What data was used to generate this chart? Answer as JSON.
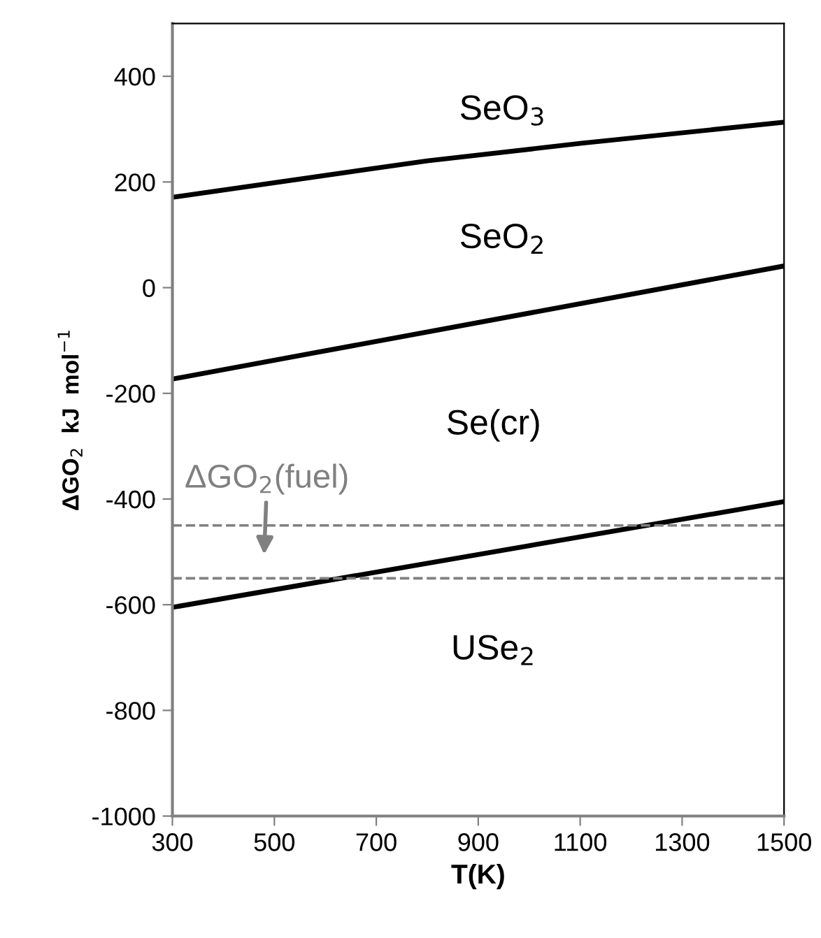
{
  "chart_data": {
    "type": "line",
    "xlabel": "T(K)",
    "ylabel": "ΔGO$_{2}$  kJ  mol$^{−1}$",
    "xlim": [
      300,
      1500
    ],
    "xticks": [
      300,
      500,
      700,
      900,
      1100,
      1300,
      1500
    ],
    "ylim": [
      -1000,
      500
    ],
    "yticks": [
      -1000,
      -800,
      -600,
      -400,
      -200,
      0,
      200,
      400
    ],
    "grid": false,
    "legend": false,
    "marker": "none",
    "line_style": "solid",
    "series": [
      {
        "color": "#000000",
        "x": [
          300,
          800,
          1100,
          1500
        ],
        "values": [
          171,
          240,
          273,
          313
        ]
      },
      {
        "color": "#000000",
        "x": [
          300,
          1500
        ],
        "values": [
          -173,
          41
        ]
      },
      {
        "color": "#000000",
        "x": [
          300,
          1500
        ],
        "values": [
          -605,
          -405
        ]
      }
    ],
    "ref_lines": [
      {
        "axis": "y",
        "value": -450,
        "color": "#808080",
        "line_style": "dashed"
      },
      {
        "axis": "y",
        "value": -550,
        "color": "#808080",
        "line_style": "dashed"
      }
    ],
    "annotations": [
      "SeO$_{3}$",
      "SeO$_{2}$",
      "Se(cr)",
      "USe$_{2}$",
      "ΔGO$_{2}$(fuel)"
    ]
  }
}
